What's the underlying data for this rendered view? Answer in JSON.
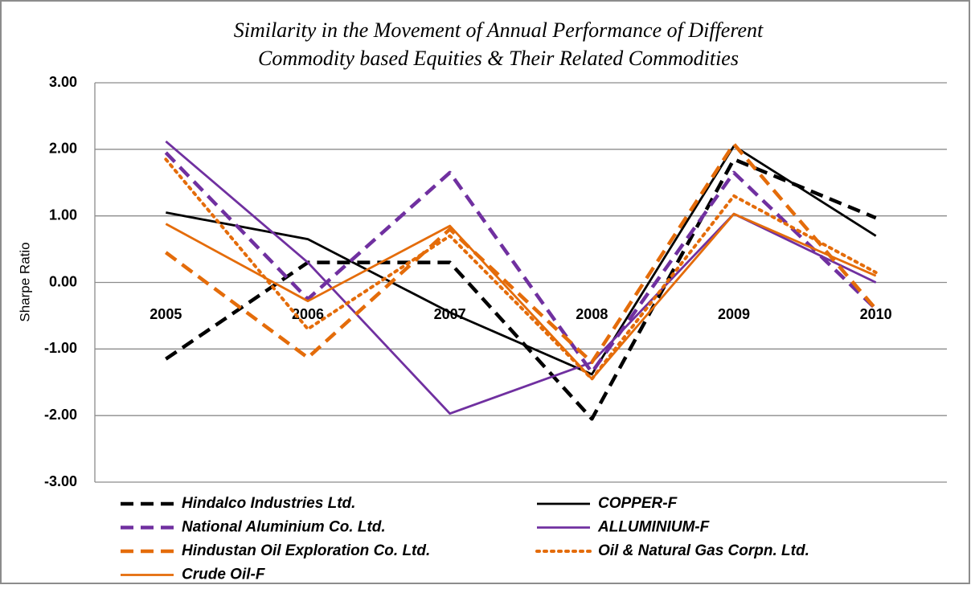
{
  "chart_data": {
    "type": "line",
    "title": [
      "Similarity in the Movement of Annual Performance of Different",
      "Commodity based Equities & Their Related Commodities"
    ],
    "y_label": "Sharpe Ratio",
    "categories": [
      "2005",
      "2006",
      "2007",
      "2008",
      "2009",
      "2010"
    ],
    "ylim": [
      -3,
      3
    ],
    "yticks": [
      {
        "value": -3,
        "label": "-3.00"
      },
      {
        "value": -2,
        "label": "-2.00"
      },
      {
        "value": -1,
        "label": "-1.00"
      },
      {
        "value": 0,
        "label": "0.00"
      },
      {
        "value": 1,
        "label": "1.00"
      },
      {
        "value": 2,
        "label": "2.00"
      },
      {
        "value": 3,
        "label": "3.00"
      }
    ],
    "grid": true,
    "series": [
      {
        "name": "Hindalco Industries Ltd.",
        "color": "#000000",
        "dash": "dashed",
        "values": [
          -1.15,
          0.3,
          0.3,
          -2.05,
          1.85,
          0.97
        ]
      },
      {
        "name": "COPPER-F",
        "color": "#000000",
        "dash": "solid",
        "values": [
          1.05,
          0.65,
          -0.45,
          -1.38,
          2.05,
          0.7
        ]
      },
      {
        "name": "National Aluminium Co. Ltd.",
        "color": "#7030a0",
        "dash": "dashed",
        "values": [
          1.95,
          -0.25,
          1.65,
          -1.35,
          1.65,
          -0.4
        ]
      },
      {
        "name": "ALLUMINIUM-F",
        "color": "#7030a0",
        "dash": "solid",
        "values": [
          2.12,
          0.3,
          -1.97,
          -1.2,
          1.03,
          0.0
        ]
      },
      {
        "name": "Hindustan Oil Exploration Co. Ltd.",
        "color": "#e46c0a",
        "dash": "dashed",
        "values": [
          0.45,
          -1.13,
          0.8,
          -1.2,
          2.08,
          -0.4
        ]
      },
      {
        "name": "Oil & Natural Gas Corpn. Ltd.",
        "color": "#e46c0a",
        "dash": "dotted",
        "values": [
          1.85,
          -0.7,
          0.7,
          -1.45,
          1.3,
          0.15
        ]
      },
      {
        "name": "Crude Oil-F",
        "color": "#e46c0a",
        "dash": "solid",
        "values": [
          0.88,
          -0.28,
          0.85,
          -1.45,
          1.03,
          0.1
        ]
      }
    ]
  }
}
